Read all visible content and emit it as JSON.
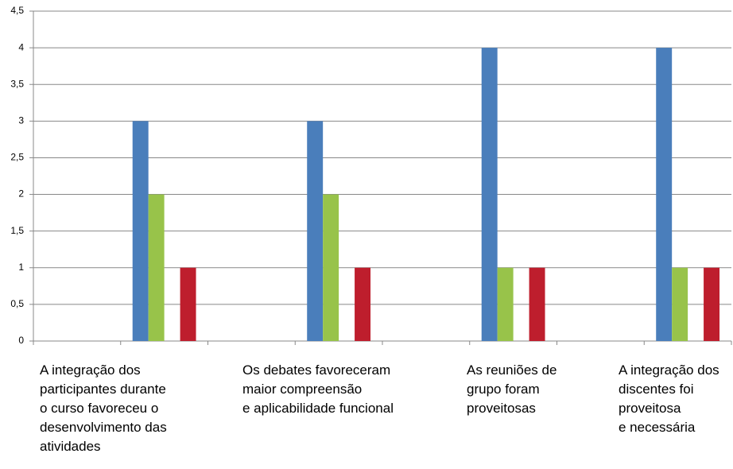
{
  "chart_data": {
    "type": "bar",
    "categories": [
      "A integração dos\nparticipantes durante\no curso favoreceu o\ndesenvolvimento das\natividades",
      "Os debates favoreceram\nmaior compreensão\ne aplicabilidade funcional",
      "As reuniões de\ngrupo foram\nproveitosas",
      "A integração dos\ndiscentes foi\nproveitosa\ne necessária"
    ],
    "series": [
      {
        "color": "#4a7ebb",
        "values": [
          3,
          3,
          4,
          4
        ]
      },
      {
        "color": "#98c34a",
        "values": [
          2,
          2,
          1,
          1
        ]
      },
      {
        "color": "#be1e2d",
        "values": [
          1,
          1,
          1,
          1
        ]
      }
    ],
    "ylim": [
      0,
      4.5
    ],
    "yticks": [
      0,
      {
        "value": 0.5,
        "label": "0,5"
      },
      1,
      {
        "value": 1.5,
        "label": "1,5"
      },
      2,
      {
        "value": 2.5,
        "label": "2,5"
      },
      3,
      {
        "value": 3.5,
        "label": "3,5"
      },
      4,
      {
        "value": 4.5,
        "label": "4,5"
      }
    ],
    "grid": true
  }
}
